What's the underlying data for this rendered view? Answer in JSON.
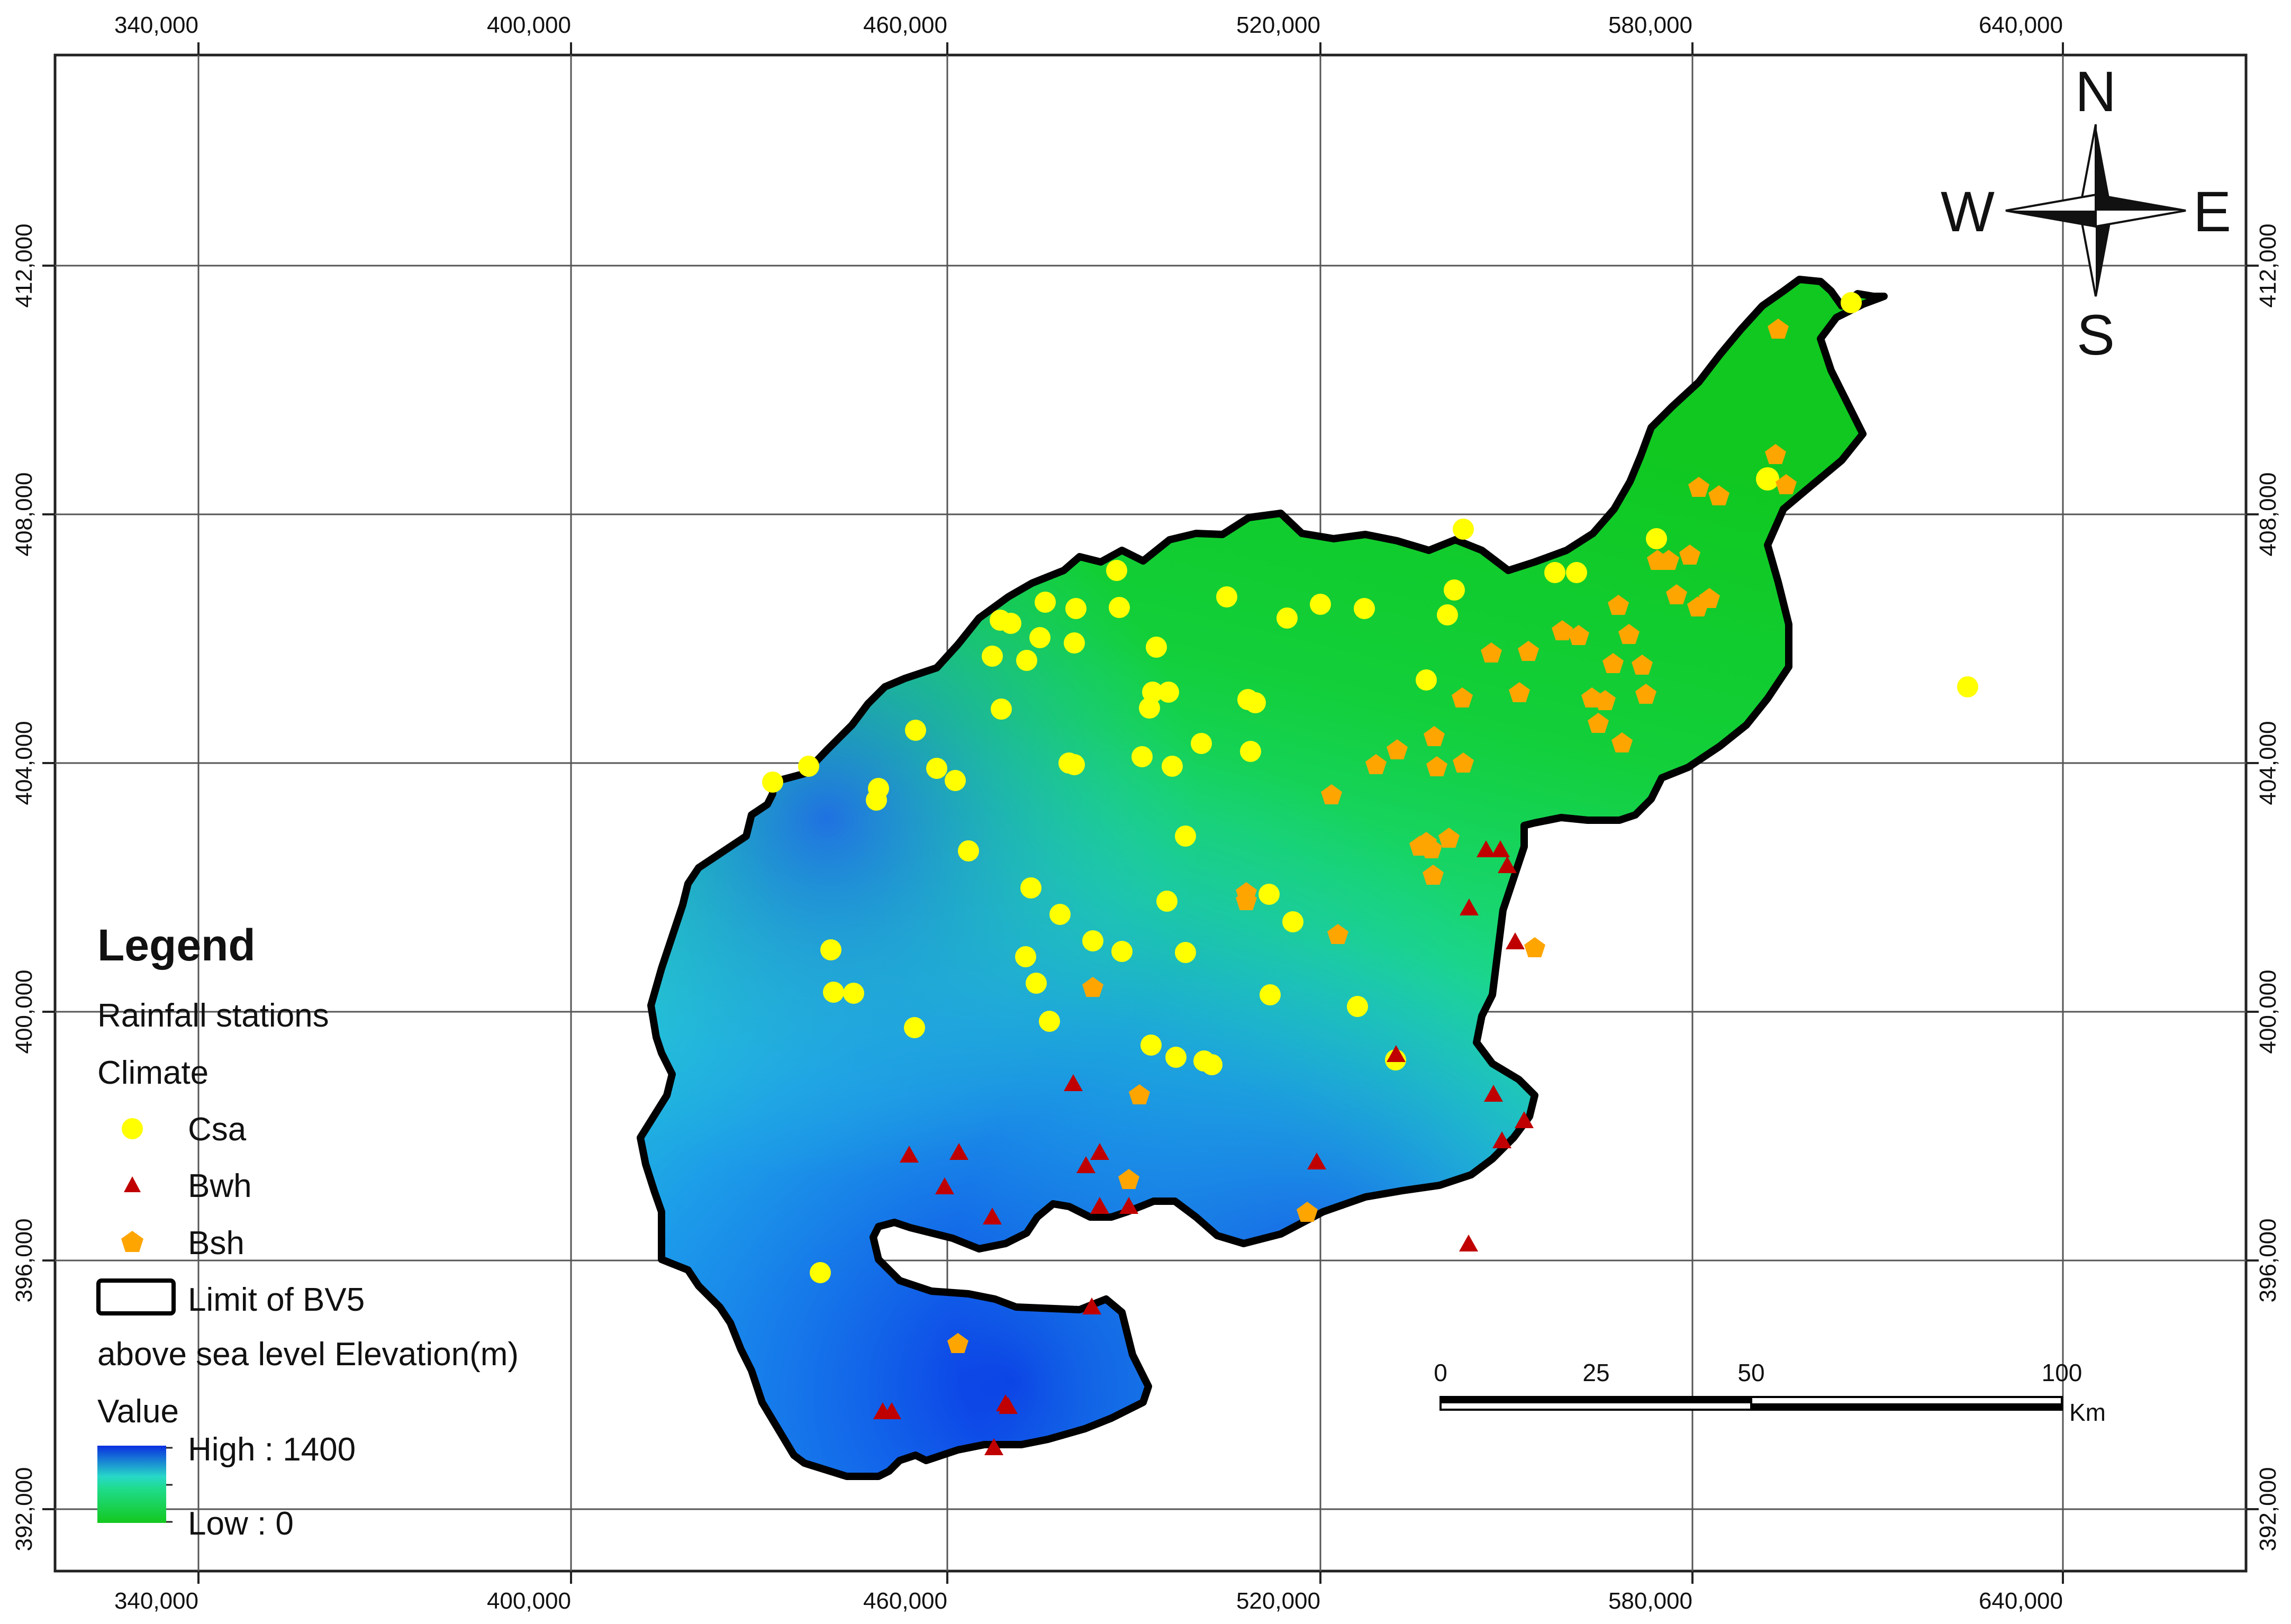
{
  "grid": {
    "x_ticks": [
      "340,000",
      "400,000",
      "460,000",
      "520,000",
      "580,000",
      "640,000"
    ],
    "y_ticks": [
      "412,000",
      "408,000",
      "404,000",
      "400,000",
      "396,000",
      "392,000"
    ]
  },
  "compass": {
    "n": "N",
    "s": "S",
    "e": "E",
    "w": "W"
  },
  "legend": {
    "title": "Legend",
    "stations_label": "Rainfall stations",
    "climate_label": "Climate",
    "csa_label": "Csa",
    "bwh_label": "Bwh",
    "bsh_label": "Bsh",
    "limit_label": "Limit of BV5",
    "elevation_label": "above sea level  Elevation(m)",
    "value_label": "Value",
    "high_label": "High : 1400",
    "low_label": "Low : 0"
  },
  "scale_bar": {
    "labels": [
      "0",
      "25",
      "50",
      "100"
    ],
    "unit": "Km"
  },
  "colors": {
    "csa": "#ffff00",
    "bwh": "#c00000",
    "bsh": "#ffa500",
    "elevation_high": "#0a2fe0",
    "elevation_mid": "#27d8c8",
    "elevation_low": "#14c81e"
  }
}
